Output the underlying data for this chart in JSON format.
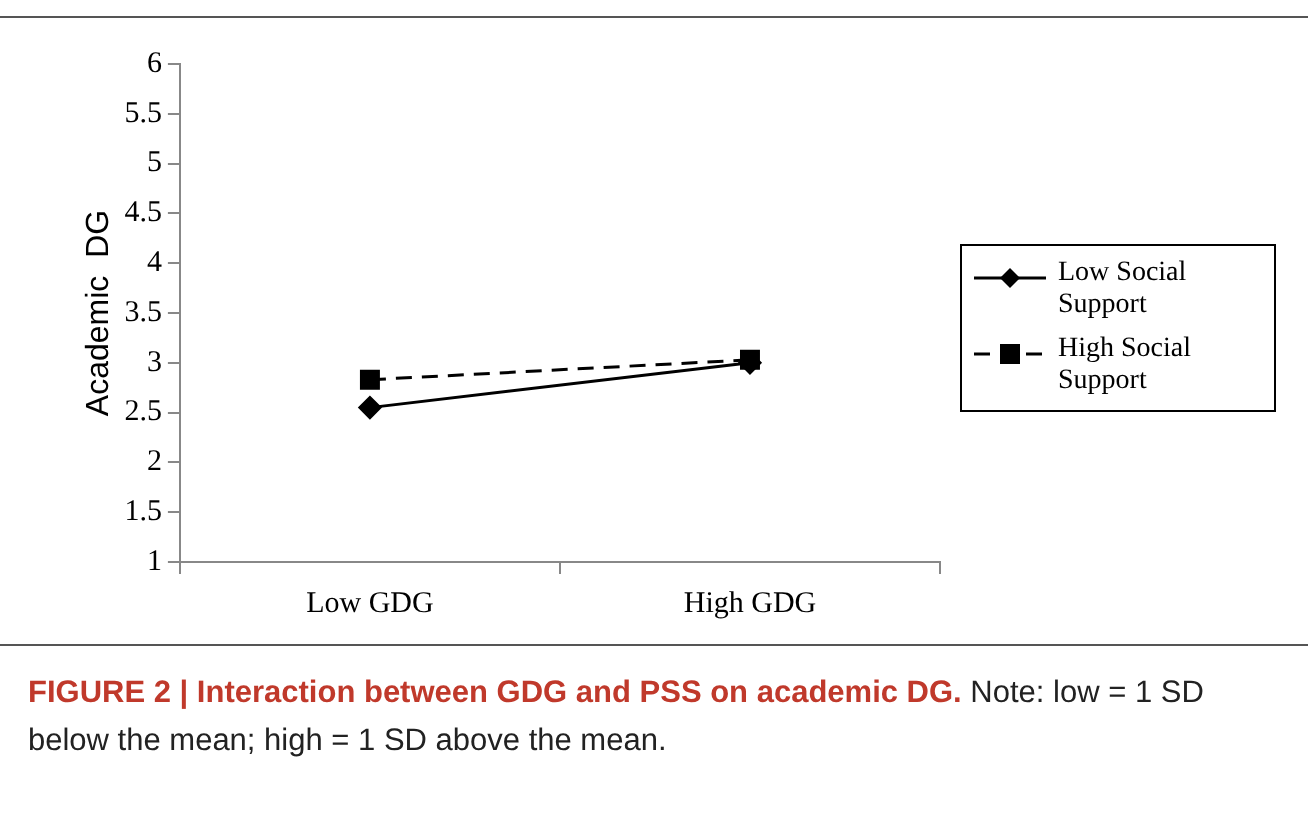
{
  "chart_data": {
    "type": "line",
    "title": "FIGURE 2 | Interaction between GDG and PSS on academic DG.",
    "annotations": [
      "Note: low = 1 SD below the mean; high = 1 SD above the mean."
    ],
    "ylabel": "Academic  DG",
    "categories": [
      "Low GDG",
      "High GDG"
    ],
    "series": [
      {
        "name": "Low Social Support",
        "color": "#000000",
        "values": [
          2.55,
          3.0
        ],
        "marker": "diamond",
        "line_style": "solid"
      },
      {
        "name": "High Social Support",
        "color": "#000000",
        "values": [
          2.83,
          3.03
        ],
        "marker": "square",
        "line_style": "dashed"
      }
    ],
    "ylim": [
      1,
      6
    ],
    "yticks": [
      1,
      1.5,
      2,
      2.5,
      3,
      3.5,
      4,
      4.5,
      5,
      5.5,
      6
    ],
    "grid": false,
    "legend": "right"
  }
}
